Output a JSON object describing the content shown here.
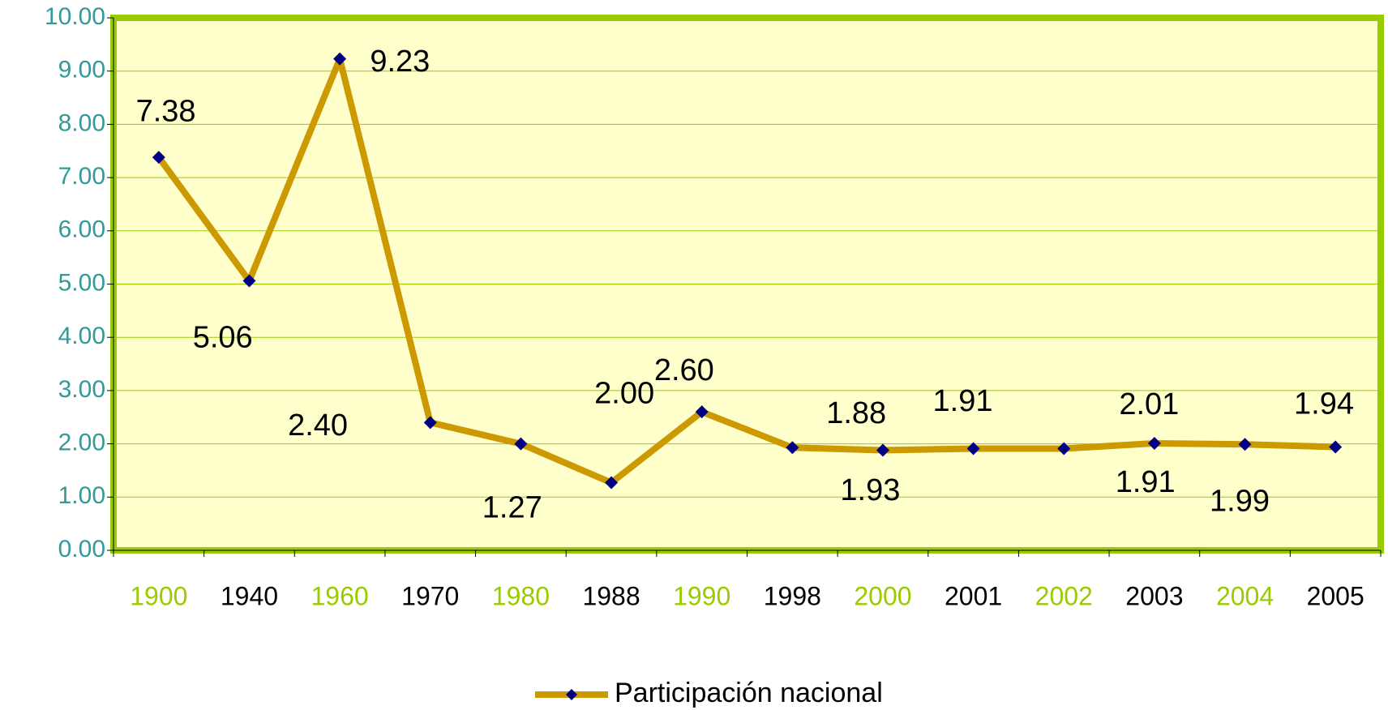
{
  "chart_data": {
    "type": "line",
    "categories": [
      "1900",
      "1940",
      "1960",
      "1970",
      "1980",
      "1988",
      "1990",
      "1998",
      "2000",
      "2001",
      "2002",
      "2003",
      "2004",
      "2005"
    ],
    "category_label_colors": [
      "#99cc00",
      "#000000"
    ],
    "series": [
      {
        "name": "Participación nacional",
        "color": "#cc9900",
        "marker_color": "#000080",
        "values": [
          7.38,
          5.06,
          9.23,
          2.4,
          2.0,
          1.27,
          2.6,
          1.93,
          1.88,
          1.91,
          1.91,
          2.01,
          1.99,
          1.94
        ],
        "value_labels": [
          "7.38",
          "5.06",
          "9.23",
          "2.40",
          "2.00",
          "1.27",
          "2.60",
          "1.93",
          "1.88",
          "1.91",
          "1.91",
          "2.01",
          "1.99",
          "1.94"
        ]
      }
    ],
    "ylim": [
      0,
      10
    ],
    "yticks": [
      {
        "value": 0,
        "label": "0.00"
      },
      {
        "value": 1,
        "label": "1.00"
      },
      {
        "value": 2,
        "label": "2.00"
      },
      {
        "value": 3,
        "label": "3.00"
      },
      {
        "value": 4,
        "label": "4.00"
      },
      {
        "value": 5,
        "label": "5.00"
      },
      {
        "value": 6,
        "label": "6.00"
      },
      {
        "value": 7,
        "label": "7.00"
      },
      {
        "value": 8,
        "label": "8.00"
      },
      {
        "value": 9,
        "label": "9.00"
      },
      {
        "value": 10,
        "label": "10.00"
      }
    ],
    "grid": true,
    "legend": "bottom"
  }
}
